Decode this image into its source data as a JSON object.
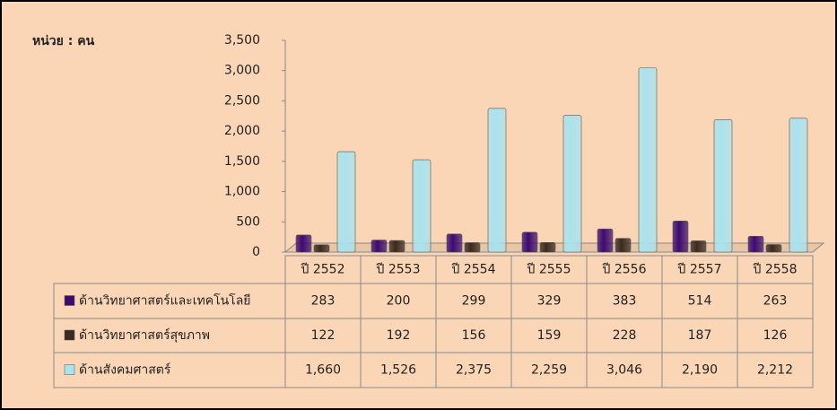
{
  "chart_data": {
    "type": "bar",
    "unit_label": "หน่วย : คน",
    "categories": [
      "ปี 2552",
      "ปี 2553",
      "ปี 2554",
      "ปี 2555",
      "ปี 2556",
      "ปี 2557",
      "ปี 2558"
    ],
    "series": [
      {
        "name": "ด้านวิทยาศาสตร์และเทคโนโลยี",
        "color": "#3d0b70",
        "values": [
          283,
          200,
          299,
          329,
          383,
          514,
          263
        ]
      },
      {
        "name": "ด้านวิทยาศาสตร์สุขภาพ",
        "color": "#3a2a20",
        "values": [
          122,
          192,
          156,
          159,
          228,
          187,
          126
        ]
      },
      {
        "name": "ด้านสังคมศาสตร์",
        "color": "#a8e3ef",
        "values": [
          1660,
          1526,
          2375,
          2259,
          3046,
          2190,
          2212
        ],
        "value_labels": [
          "1,660",
          "1,526",
          "2,375",
          "2,259",
          "3,046",
          "2,190",
          "2,212"
        ]
      }
    ],
    "ylim": [
      0,
      3500
    ],
    "yticks": [
      0,
      500,
      {
        "value": 1000,
        "label": "1,000"
      },
      {
        "value": 1500,
        "label": "1,500"
      },
      {
        "value": 2000,
        "label": "2,000"
      },
      {
        "value": 2500,
        "label": "2,500"
      },
      {
        "value": 3000,
        "label": "3,000"
      },
      {
        "value": 3500,
        "label": "3,500"
      }
    ]
  }
}
